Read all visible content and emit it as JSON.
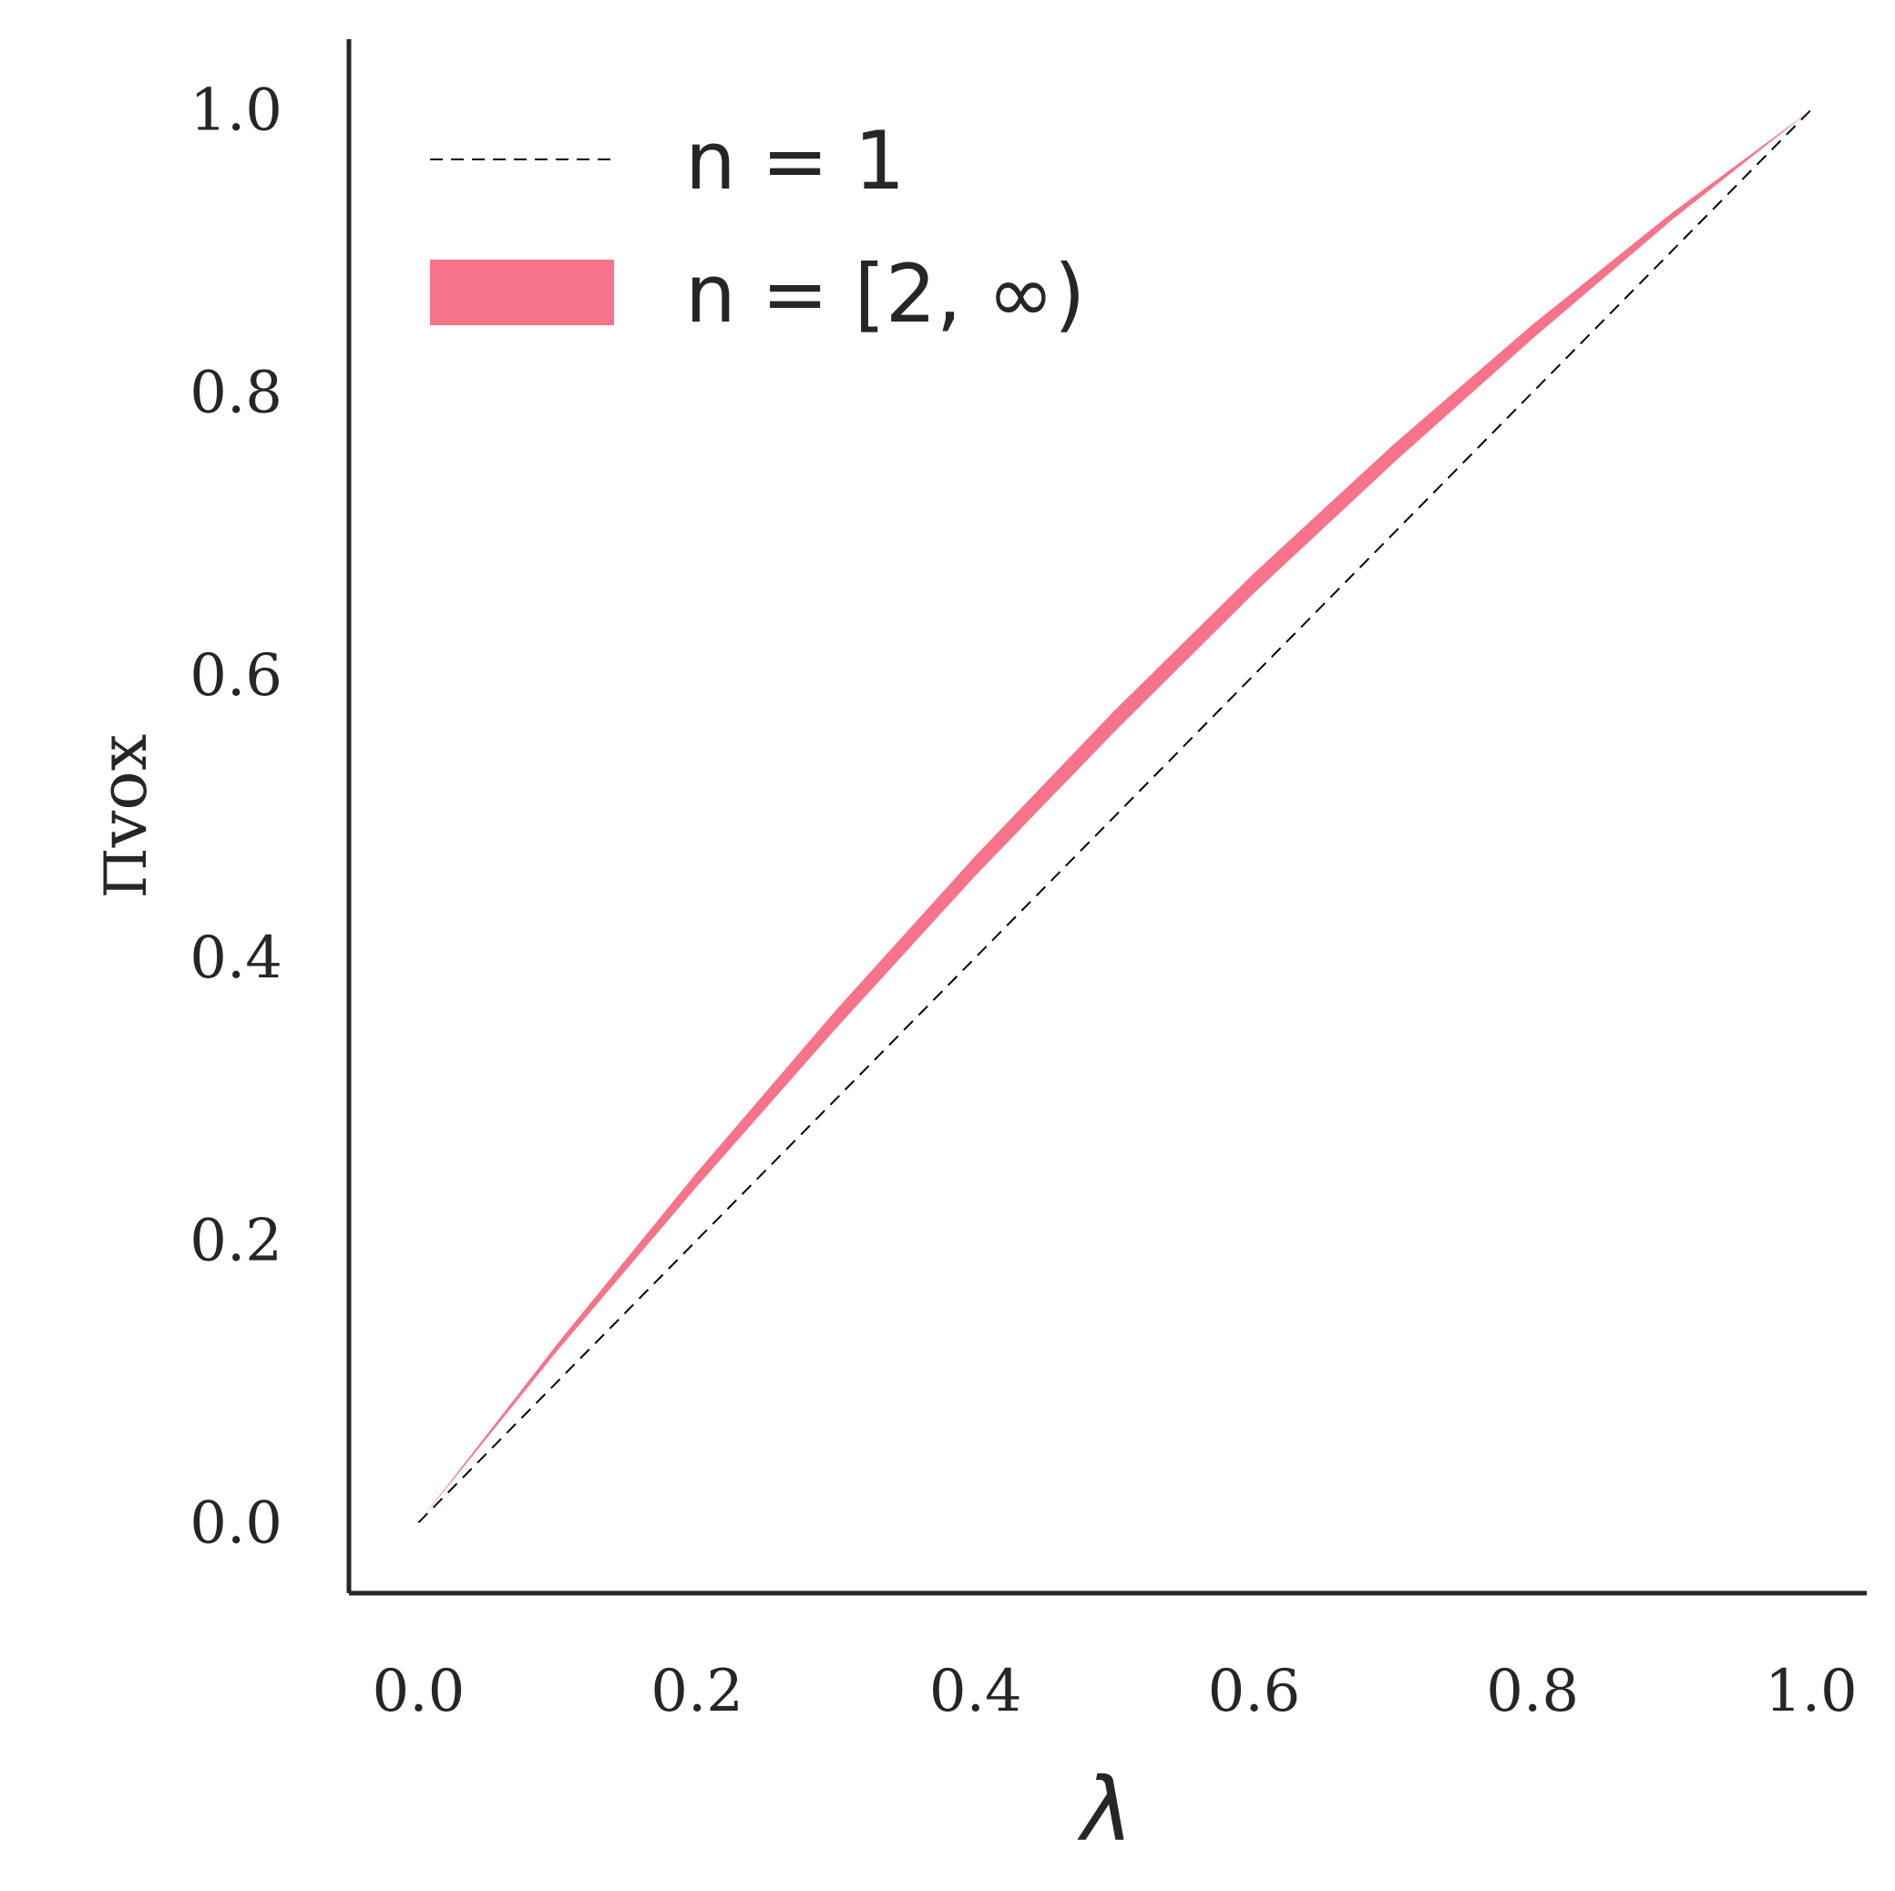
{
  "chart_data": {
    "type": "line",
    "x_label": "λ",
    "y_label": "Π",
    "y_label_sub": "vox",
    "xlim": [
      -0.05,
      1.04
    ],
    "ylim": [
      -0.05,
      1.05
    ],
    "xticks": [
      {
        "value": 0,
        "label": "0.0"
      },
      0.2,
      0.4,
      0.6,
      0.8,
      {
        "value": 1,
        "label": "1.0"
      }
    ],
    "yticks": [
      {
        "value": 0,
        "label": "0.0"
      },
      0.2,
      0.4,
      0.6,
      0.8,
      {
        "value": 1,
        "label": "1.0"
      }
    ],
    "grid": false,
    "legend": "upper left",
    "series": [
      {
        "name": "n = 1",
        "color": "#000000",
        "dashed": true,
        "x": [
          0,
          1
        ],
        "values": [
          0,
          1
        ]
      },
      {
        "name": "n = [2, ∞)",
        "color": "#f7738a",
        "band": true,
        "x": [
          0,
          0.1,
          0.2,
          0.3,
          0.4,
          0.5,
          0.6,
          0.7,
          0.8,
          0.9,
          1
        ],
        "lower": [
          0,
          0.122,
          0.238,
          0.35,
          0.458,
          0.56,
          0.658,
          0.75,
          0.838,
          0.922,
          1
        ],
        "upper": [
          0,
          0.127,
          0.248,
          0.363,
          0.472,
          0.575,
          0.672,
          0.763,
          0.848,
          0.927,
          1
        ]
      }
    ]
  }
}
